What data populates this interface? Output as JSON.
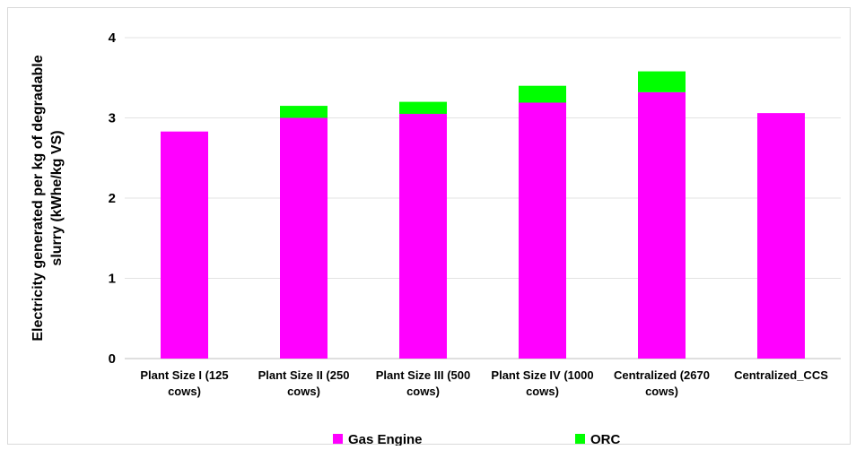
{
  "chart_data": {
    "type": "bar",
    "stacked": true,
    "title": "",
    "xlabel": "",
    "ylabel": [
      "Electricity generated per kg of degradable",
      "slurry (kWhe/kg VS)"
    ],
    "ylim": [
      0,
      4
    ],
    "yticks": [
      "0",
      "1",
      "2",
      "3",
      "4"
    ],
    "grid": true,
    "legend_position": "bottom",
    "categories": [
      [
        "Plant Size I (125",
        "cows)"
      ],
      [
        "Plant Size II (250",
        "cows)"
      ],
      [
        "Plant Size III (500",
        "cows)"
      ],
      [
        "Plant Size IV (1000",
        "cows)"
      ],
      [
        "Centralized (2670",
        "cows)"
      ],
      [
        "Centralized_CCS"
      ]
    ],
    "series": [
      {
        "name": "Gas Engine",
        "color": "#ff00ff",
        "values": [
          2.83,
          3.0,
          3.05,
          3.19,
          3.32,
          3.06
        ]
      },
      {
        "name": "ORC",
        "color": "#00ff00",
        "values": [
          0,
          0.15,
          0.15,
          0.21,
          0.26,
          0
        ]
      }
    ]
  }
}
